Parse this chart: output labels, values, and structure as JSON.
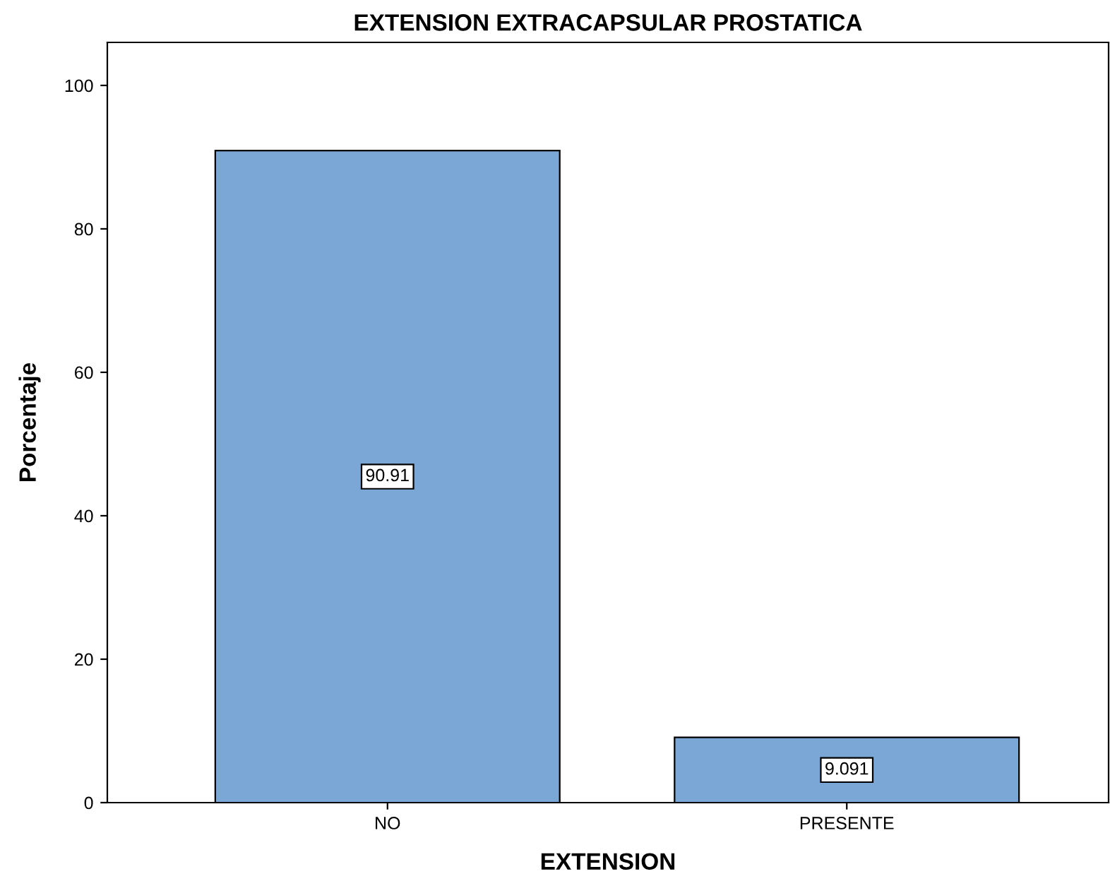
{
  "chart_data": {
    "type": "bar",
    "title": "EXTENSION EXTRACAPSULAR PROSTATICA",
    "xlabel": "EXTENSION",
    "ylabel": "Porcentaje",
    "categories": [
      "NO",
      "PRESENTE"
    ],
    "values": [
      90.91,
      9.091
    ],
    "color": "#7ba7d7",
    "ylim": [
      0,
      106
    ],
    "yticks": [
      0,
      20,
      40,
      60,
      80,
      100
    ],
    "grid": false,
    "legend": false,
    "data_labels": true
  }
}
